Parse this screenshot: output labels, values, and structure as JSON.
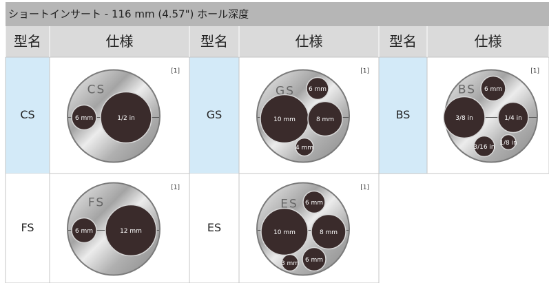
{
  "header": {
    "title": "ショートインサート - 116 mm (4.57\") ホール深度"
  },
  "table": {
    "columns": [
      "型名",
      "仕様",
      "型名",
      "仕様",
      "型名",
      "仕様"
    ],
    "rows": [
      [
        {
          "model": "CS",
          "insert": {
            "name": "CS",
            "note": "[1]",
            "holes": [
              "6 mm",
              "1/2 in"
            ]
          }
        },
        {
          "model": "GS",
          "insert": {
            "name": "GS",
            "note": "[1]",
            "holes": [
              "6 mm",
              "10 mm",
              "8 mm",
              "4 mm"
            ]
          }
        },
        {
          "model": "BS",
          "insert": {
            "name": "BS",
            "note": "[1]",
            "holes": [
              "6 mm",
              "3/8 in",
              "1/4 in",
              "3/16 in",
              "1/8 in"
            ]
          }
        }
      ],
      [
        {
          "model": "FS",
          "insert": {
            "name": "FS",
            "note": "[1]",
            "holes": [
              "6 mm",
              "12 mm"
            ]
          }
        },
        {
          "model": "ES",
          "insert": {
            "name": "ES",
            "note": "[1]",
            "holes": [
              "6 mm",
              "10 mm",
              "8 mm",
              "3 mm",
              "6 mm"
            ]
          }
        }
      ]
    ]
  }
}
